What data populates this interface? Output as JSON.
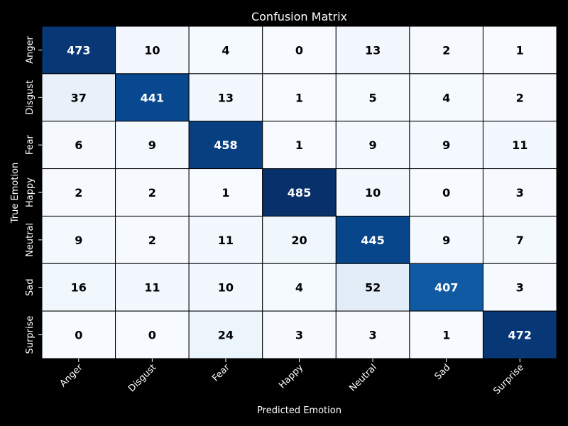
{
  "chart_data": {
    "type": "heatmap",
    "title": "Confusion Matrix",
    "xlabel": "Predicted Emotion",
    "ylabel": "True Emotion",
    "x_categories": [
      "Anger",
      "Disgust",
      "Fear",
      "Happy",
      "Neutral",
      "Sad",
      "Surprise"
    ],
    "y_categories": [
      "Anger",
      "Disgust",
      "Fear",
      "Happy",
      "Neutral",
      "Sad",
      "Surprise"
    ],
    "values": [
      [
        473,
        10,
        4,
        0,
        13,
        2,
        1
      ],
      [
        37,
        441,
        13,
        1,
        5,
        4,
        2
      ],
      [
        6,
        9,
        458,
        1,
        9,
        9,
        11
      ],
      [
        2,
        2,
        1,
        485,
        10,
        0,
        3
      ],
      [
        9,
        2,
        11,
        20,
        445,
        9,
        7
      ],
      [
        16,
        11,
        10,
        4,
        52,
        407,
        3
      ],
      [
        0,
        0,
        24,
        3,
        3,
        1,
        472
      ]
    ],
    "colormap": "Blues",
    "cell_border_color": "#000000",
    "grid": false,
    "legend": "none"
  }
}
